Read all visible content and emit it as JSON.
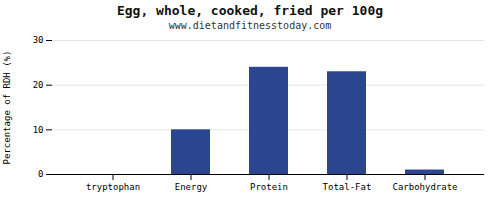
{
  "chart_data": {
    "type": "bar",
    "title": "Egg, whole, cooked, fried per 100g",
    "subtitle": "www.dietandfitnesstoday.com",
    "categories": [
      "tryptophan",
      "Energy",
      "Protein",
      "Total-Fat",
      "Carbohydrate"
    ],
    "values": [
      0,
      10,
      24,
      23,
      1
    ],
    "color": "#2b4590",
    "ylabel": "Percentage of RDH (%)",
    "ylim": [
      0,
      30
    ],
    "yticks": [
      0,
      10,
      20,
      30
    ],
    "grid": true
  }
}
